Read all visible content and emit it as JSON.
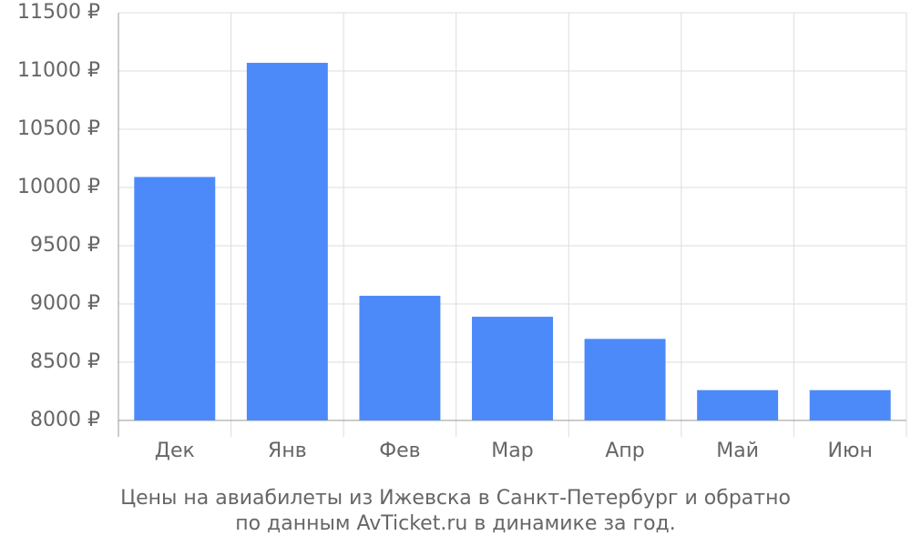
{
  "chart_data": {
    "type": "bar",
    "title": [
      "Цены на авиабилеты из Ижевска в Санкт-Петербург и обратно",
      "по данным AvTicket.ru в динамике за год."
    ],
    "categories": [
      "Дек",
      "Янв",
      "Фев",
      "Мар",
      "Апр",
      "Май",
      "Июн"
    ],
    "values": [
      10090,
      11070,
      9070,
      8890,
      8700,
      8260,
      8260
    ],
    "color": "#4d8af9",
    "ylim": [
      8000,
      11500
    ],
    "yticks": [
      {
        "value": 8000,
        "label": "8000 ₽"
      },
      {
        "value": 8500,
        "label": "8500 ₽"
      },
      {
        "value": 9000,
        "label": "9000 ₽"
      },
      {
        "value": 9500,
        "label": "9500 ₽"
      },
      {
        "value": 10000,
        "label": "10000 ₽"
      },
      {
        "value": 10500,
        "label": "10500 ₽"
      },
      {
        "value": 11000,
        "label": "11000 ₽"
      },
      {
        "value": 11500,
        "label": "11500 ₽"
      }
    ],
    "grid": true
  }
}
